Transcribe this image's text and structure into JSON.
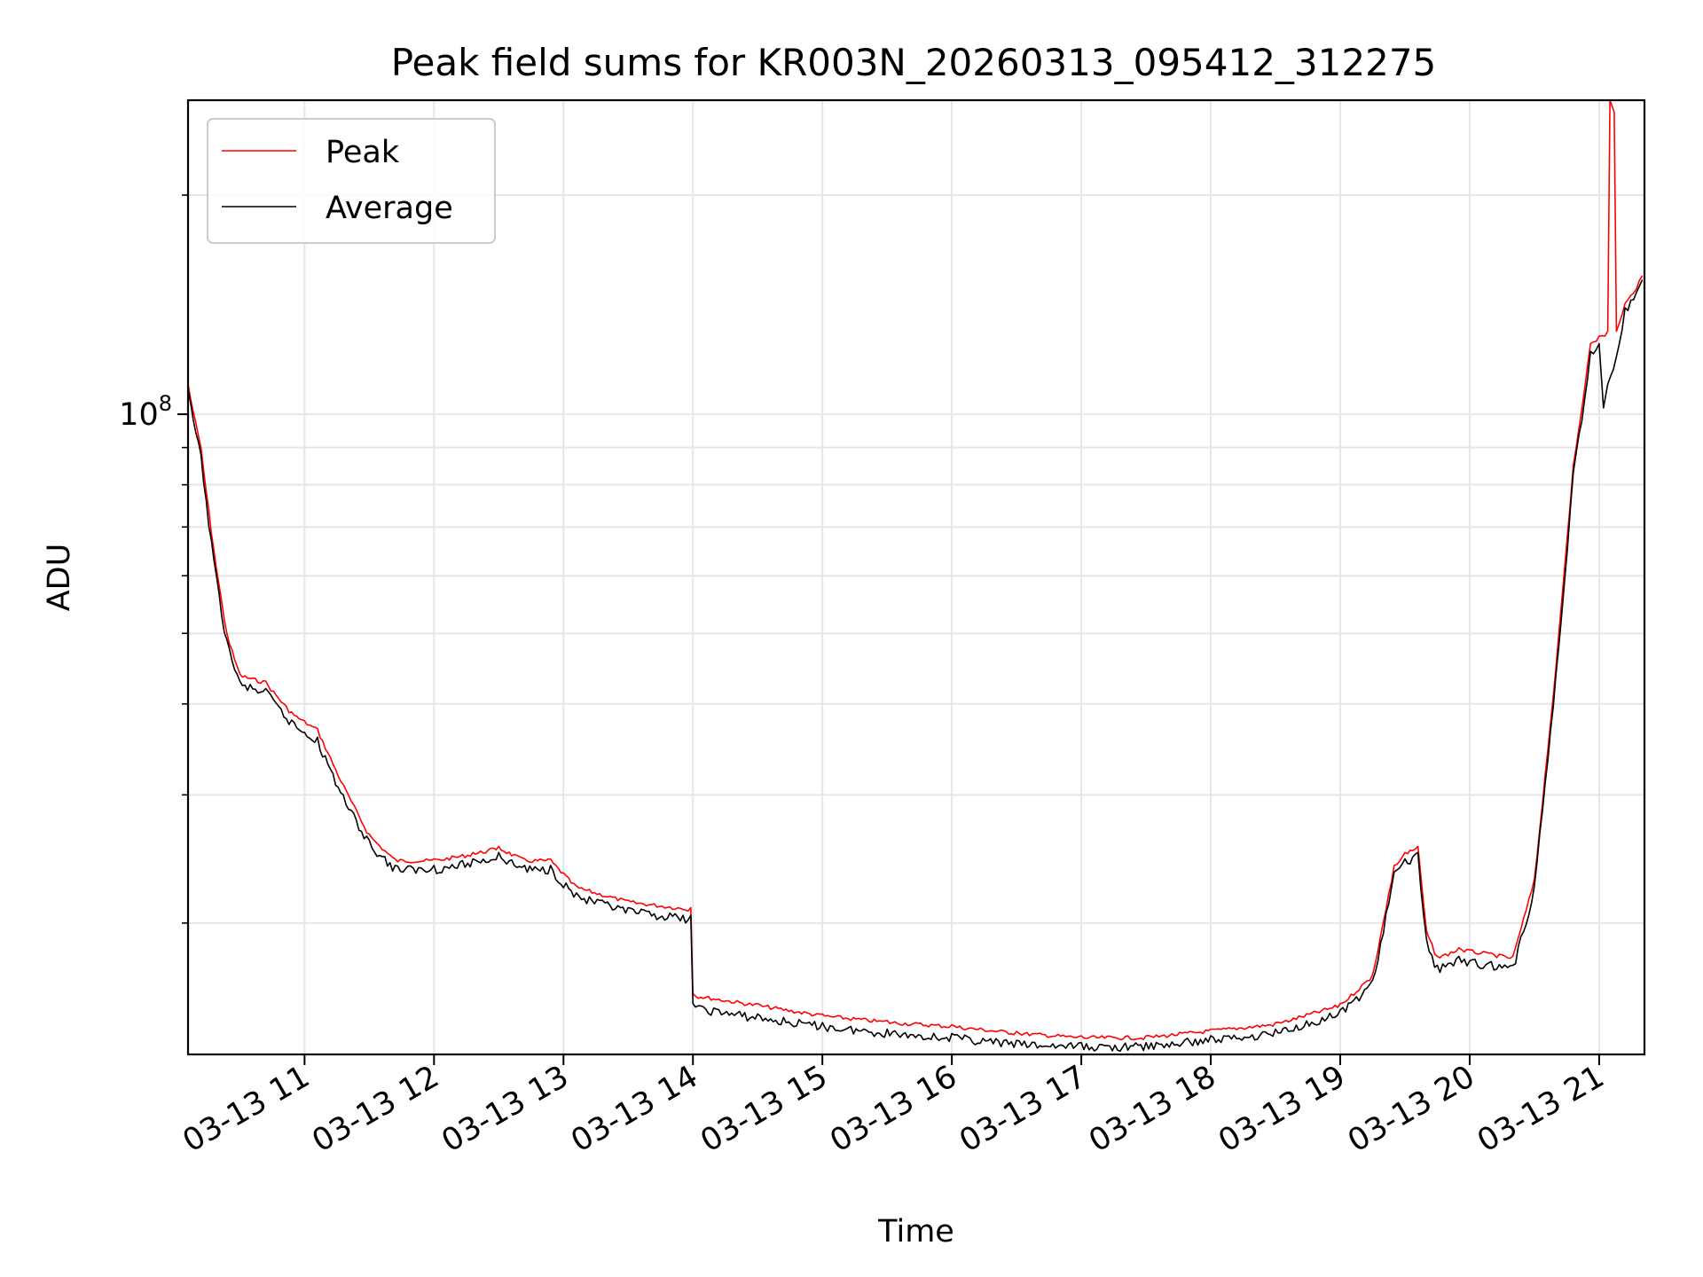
{
  "chart_data": {
    "type": "line",
    "title": "Peak field sums for KR003N_20260313_095412_312275",
    "xlabel": "Time",
    "ylabel": "ADU",
    "y_scale": "log",
    "grid": true,
    "legend_position": "top-left",
    "ylim": [
      13200000.0,
      270000000.0
    ],
    "xlim": [
      "2026-03-13 10:06",
      "2026-03-13 21:21"
    ],
    "x_ticks": [
      "03-13 11",
      "03-13 12",
      "03-13 13",
      "03-13 14",
      "03-13 15",
      "03-13 16",
      "03-13 17",
      "03-13 18",
      "03-13 19",
      "03-13 20",
      "03-13 21"
    ],
    "y_tick_major": {
      "value": 100000000.0,
      "base": "10",
      "exponent": "8"
    },
    "y_minor_ticks": [
      20000000.0,
      30000000.0,
      40000000.0,
      50000000.0,
      60000000.0,
      70000000.0,
      80000000.0,
      90000000.0,
      200000000.0
    ],
    "series": [
      {
        "name": "Peak",
        "color": "#ff0000",
        "x": [
          "2026-03-13 10:06",
          "2026-03-13 10:12",
          "2026-03-13 10:18",
          "2026-03-13 10:24",
          "2026-03-13 10:30",
          "2026-03-13 10:42",
          "2026-03-13 10:54",
          "2026-03-13 11:06",
          "2026-03-13 11:18",
          "2026-03-13 11:30",
          "2026-03-13 11:42",
          "2026-03-13 12:00",
          "2026-03-13 12:18",
          "2026-03-13 12:30",
          "2026-03-13 12:42",
          "2026-03-13 12:54",
          "2026-03-13 13:06",
          "2026-03-13 13:30",
          "2026-03-13 13:59",
          "2026-03-13 14:00",
          "2026-03-13 14:30",
          "2026-03-13 15:00",
          "2026-03-13 15:30",
          "2026-03-13 16:00",
          "2026-03-13 16:30",
          "2026-03-13 17:00",
          "2026-03-13 17:30",
          "2026-03-13 18:00",
          "2026-03-13 18:30",
          "2026-03-13 19:00",
          "2026-03-13 19:15",
          "2026-03-13 19:25",
          "2026-03-13 19:30",
          "2026-03-13 19:36",
          "2026-03-13 19:40",
          "2026-03-13 19:45",
          "2026-03-13 19:55",
          "2026-03-13 20:10",
          "2026-03-13 20:20",
          "2026-03-13 20:30",
          "2026-03-13 20:40",
          "2026-03-13 20:48",
          "2026-03-13 20:56",
          "2026-03-13 21:00",
          "2026-03-13 21:04",
          "2026-03-13 21:05",
          "2026-03-13 21:07",
          "2026-03-13 21:08",
          "2026-03-13 21:12",
          "2026-03-13 21:20"
        ],
        "y": [
          110000000.0,
          90000000.0,
          65000000.0,
          50000000.0,
          44000000.0,
          43000000.0,
          39000000.0,
          37000000.0,
          31000000.0,
          26500000.0,
          24500000.0,
          24500000.0,
          25000000.0,
          25500000.0,
          24500000.0,
          24500000.0,
          22500000.0,
          21500000.0,
          21000000.0,
          16000000.0,
          15500000.0,
          15000000.0,
          14700000.0,
          14500000.0,
          14200000.0,
          14000000.0,
          14000000.0,
          14300000.0,
          14600000.0,
          15500000.0,
          17000000.0,
          24000000.0,
          25000000.0,
          25500000.0,
          19500000.0,
          18000000.0,
          18500000.0,
          18200000.0,
          18000000.0,
          23000000.0,
          45000000.0,
          85000000.0,
          125000000.0,
          128000000.0,
          130000000.0,
          270000000.0,
          260000000.0,
          130000000.0,
          142000000.0,
          155000000.0
        ]
      },
      {
        "name": "Average",
        "color": "#000000",
        "x": [
          "2026-03-13 10:06",
          "2026-03-13 10:12",
          "2026-03-13 10:18",
          "2026-03-13 10:24",
          "2026-03-13 10:30",
          "2026-03-13 10:42",
          "2026-03-13 10:54",
          "2026-03-13 11:06",
          "2026-03-13 11:18",
          "2026-03-13 11:30",
          "2026-03-13 11:42",
          "2026-03-13 12:00",
          "2026-03-13 12:18",
          "2026-03-13 12:30",
          "2026-03-13 12:42",
          "2026-03-13 12:54",
          "2026-03-13 13:06",
          "2026-03-13 13:30",
          "2026-03-13 13:59",
          "2026-03-13 14:00",
          "2026-03-13 14:30",
          "2026-03-13 15:00",
          "2026-03-13 15:30",
          "2026-03-13 16:00",
          "2026-03-13 16:30",
          "2026-03-13 17:00",
          "2026-03-13 17:30",
          "2026-03-13 18:00",
          "2026-03-13 18:30",
          "2026-03-13 19:00",
          "2026-03-13 19:15",
          "2026-03-13 19:25",
          "2026-03-13 19:30",
          "2026-03-13 19:36",
          "2026-03-13 19:40",
          "2026-03-13 19:45",
          "2026-03-13 19:55",
          "2026-03-13 20:10",
          "2026-03-13 20:20",
          "2026-03-13 20:30",
          "2026-03-13 20:40",
          "2026-03-13 20:48",
          "2026-03-13 20:56",
          "2026-03-13 21:00",
          "2026-03-13 21:02",
          "2026-03-13 21:04",
          "2026-03-13 21:08",
          "2026-03-13 21:12",
          "2026-03-13 21:20"
        ],
        "y": [
          108000000.0,
          88000000.0,
          63000000.0,
          49000000.0,
          43000000.0,
          42000000.0,
          38000000.0,
          36000000.0,
          30000000.0,
          26000000.0,
          24000000.0,
          24000000.0,
          24500000.0,
          25000000.0,
          24000000.0,
          24000000.0,
          22000000.0,
          21000000.0,
          20500000.0,
          15500000.0,
          15000000.0,
          14600000.0,
          14300000.0,
          14100000.0,
          13800000.0,
          13700000.0,
          13700000.0,
          14000000.0,
          14300000.0,
          15200000.0,
          16700000.0,
          23500000.0,
          24500000.0,
          25000000.0,
          19000000.0,
          17500000.0,
          18000000.0,
          17700000.0,
          17500000.0,
          22500000.0,
          44000000.0,
          83000000.0,
          122000000.0,
          125000000.0,
          102000000.0,
          110000000.0,
          120000000.0,
          140000000.0,
          153000000.0
        ]
      }
    ]
  }
}
